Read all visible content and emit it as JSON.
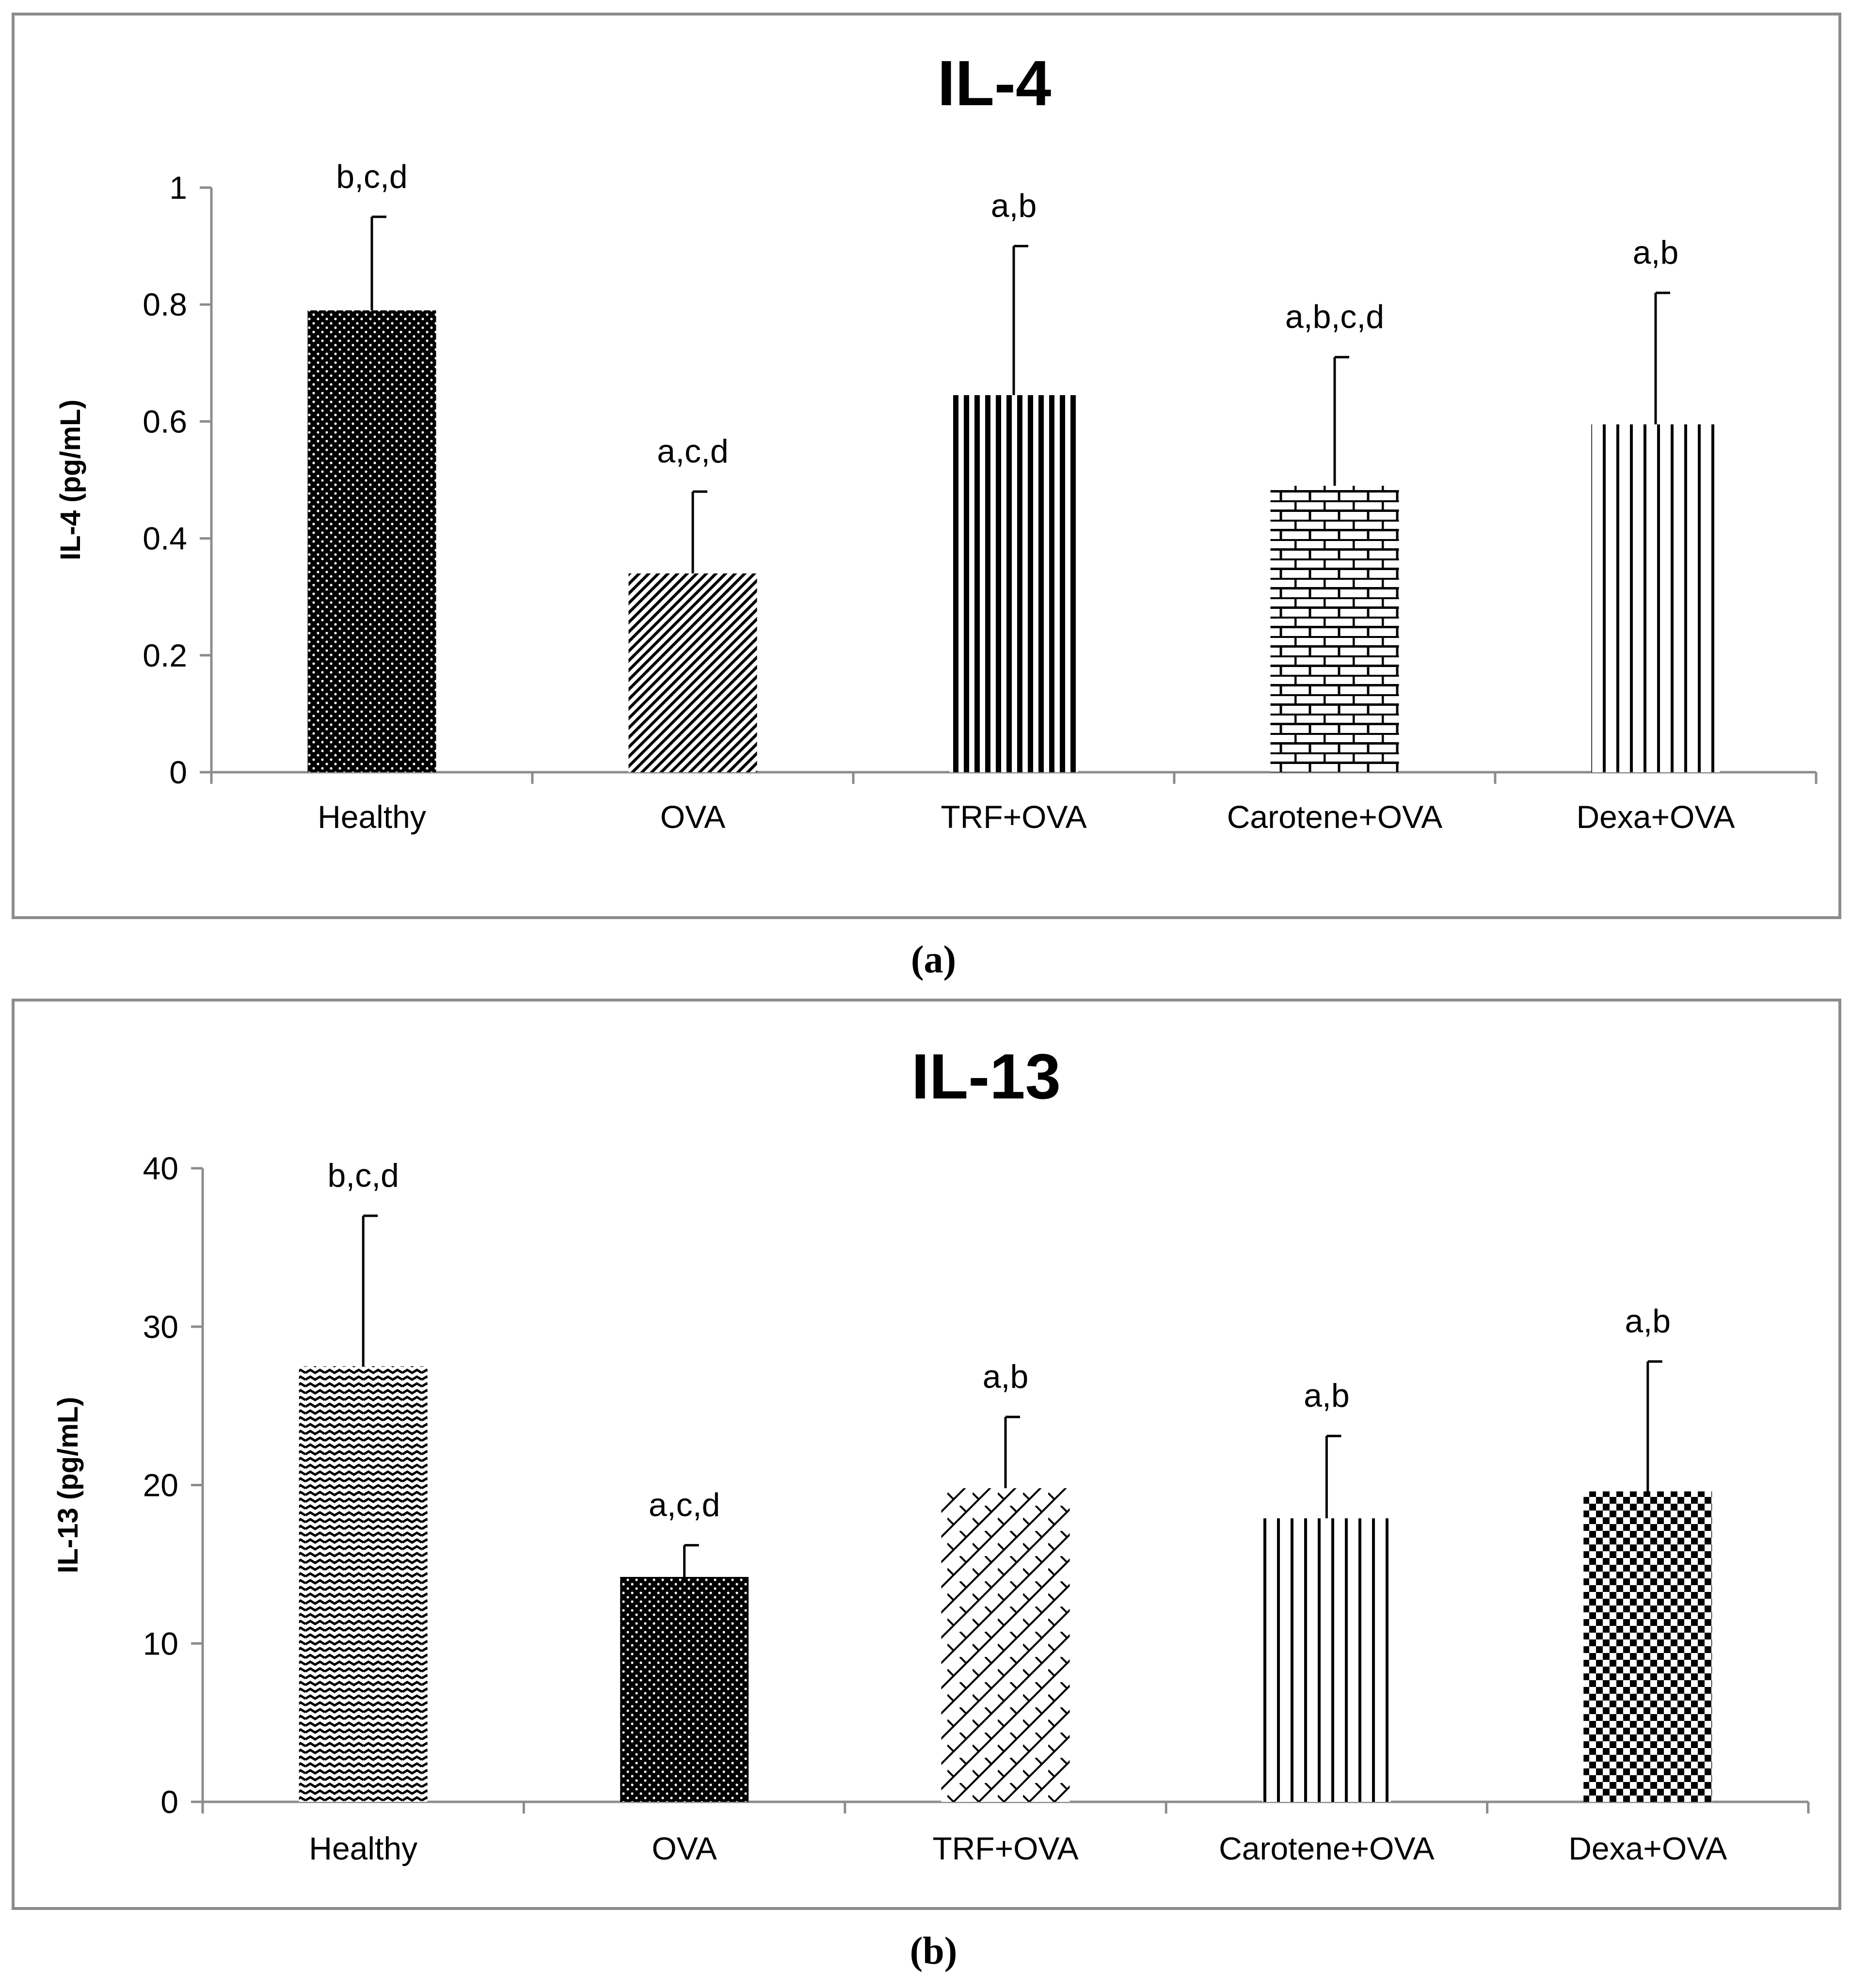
{
  "chart_data": [
    {
      "type": "bar",
      "panel": "a",
      "title": "IL-4",
      "xlabel": "",
      "ylabel": "IL-4  (pg/mL)",
      "categories": [
        "Healthy",
        "OVA",
        "TRF+OVA",
        "Carotene+OVA",
        "Dexa+OVA"
      ],
      "values": [
        0.79,
        0.34,
        0.645,
        0.49,
        0.595
      ],
      "error_upper": [
        0.95,
        0.48,
        0.9,
        0.71,
        0.82
      ],
      "significance": [
        "b,c,d",
        "a,c,d",
        "a,b",
        "a,b,c,d",
        "a,b"
      ],
      "patterns": [
        "dots-dark",
        "diagonal",
        "vertical-thick",
        "brick",
        "vertical-thin"
      ],
      "ylim": [
        0,
        1
      ],
      "yticks": [
        0,
        0.2,
        0.4,
        0.6,
        0.8,
        1
      ],
      "ytick_labels": [
        "0",
        "0.2",
        "0.4",
        "0.6",
        "0.8",
        "1"
      ],
      "grid": false
    },
    {
      "type": "bar",
      "panel": "b",
      "title": "IL-13",
      "xlabel": "",
      "ylabel": "IL-13  (pg/mL)",
      "categories": [
        "Healthy",
        "OVA",
        "TRF+OVA",
        "Carotene+OVA",
        "Dexa+OVA"
      ],
      "values": [
        27.5,
        14.2,
        19.8,
        17.9,
        19.6
      ],
      "error_upper": [
        37.0,
        16.2,
        24.3,
        23.1,
        27.8
      ],
      "significance": [
        "b,c,d",
        "a,c,d",
        "a,b",
        "a,b",
        "a,b"
      ],
      "patterns": [
        "wave",
        "dots-dark",
        "lattice",
        "vertical-thin",
        "checker"
      ],
      "ylim": [
        0,
        40
      ],
      "yticks": [
        0,
        10,
        20,
        30,
        40
      ],
      "ytick_labels": [
        "0",
        "10",
        "20",
        "30",
        "40"
      ],
      "grid": false
    }
  ],
  "captions": [
    "(a)",
    "(b)"
  ]
}
